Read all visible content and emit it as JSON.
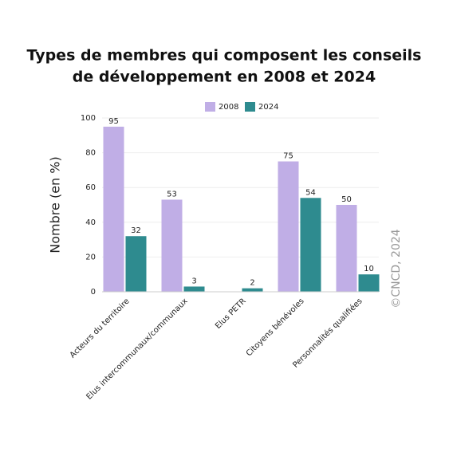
{
  "chart_data": {
    "type": "bar",
    "title": [
      "Types de membres qui composent les conseils",
      "de développement en 2008 et 2024"
    ],
    "y_label": "Nombre (en %)",
    "credit": "©CNCD, 2024",
    "categories": [
      "Acteurs du territoire",
      "Elus intercommunaux/communaux",
      "Elus PETR",
      "Citoyens bénévoles",
      "Personnalités qualifiées"
    ],
    "series": [
      {
        "name": "2008",
        "color": "#c0aee6",
        "values": [
          95,
          53,
          null,
          75,
          50
        ]
      },
      {
        "name": "2024",
        "color": "#2e8b8f",
        "values": [
          32,
          3,
          2,
          54,
          10
        ]
      }
    ],
    "ylim": [
      0,
      100
    ],
    "yticks": [
      0,
      20,
      40,
      60,
      80,
      100
    ],
    "grid": true
  }
}
